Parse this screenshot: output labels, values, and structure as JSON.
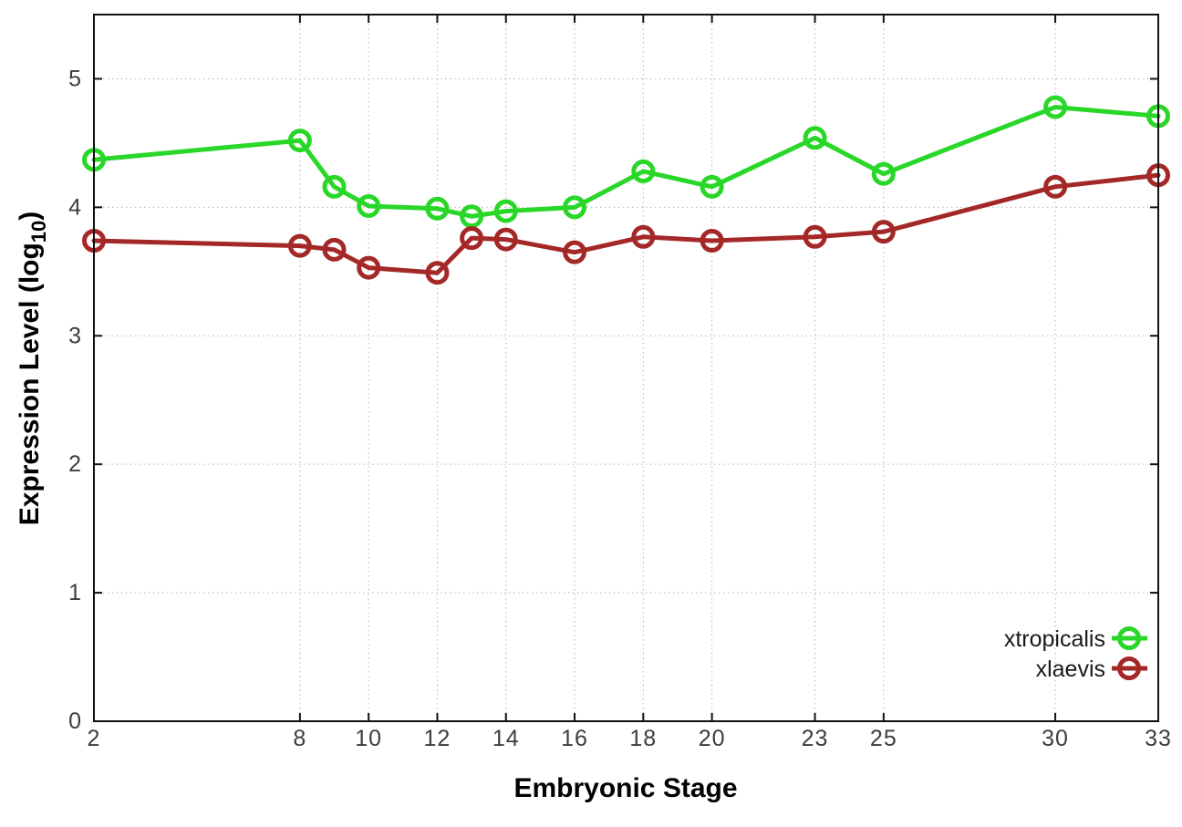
{
  "chart_data": {
    "type": "line",
    "title": "",
    "xlabel": "Embryonic Stage",
    "ylabel": "Expression Level (log10)",
    "ylabel_parts": {
      "main": "Expression Level (log",
      "sub": "10",
      "close": ")"
    },
    "x": [
      2,
      8,
      9,
      10,
      12,
      13,
      14,
      16,
      18,
      20,
      23,
      25,
      30,
      33
    ],
    "series": [
      {
        "name": "xtropicalis",
        "color": "#28d728",
        "values": [
          4.37,
          4.52,
          4.16,
          4.01,
          3.99,
          3.93,
          3.97,
          4.0,
          4.28,
          4.16,
          4.54,
          4.26,
          4.78,
          4.71
        ]
      },
      {
        "name": "xlaevis",
        "color": "#a52828",
        "values": [
          3.74,
          3.7,
          3.67,
          3.53,
          3.49,
          3.76,
          3.75,
          3.65,
          3.77,
          3.74,
          3.77,
          3.81,
          4.16,
          4.25
        ]
      }
    ],
    "x_ticks": [
      2,
      8,
      10,
      12,
      14,
      16,
      18,
      20,
      23,
      25,
      30,
      33
    ],
    "y_ticks": [
      0,
      1,
      2,
      3,
      4,
      5
    ],
    "xlim": [
      2,
      33
    ],
    "ylim": [
      0,
      5.5
    ],
    "grid": true,
    "legend_position": "inside-bottom-right",
    "marker": "open-circle",
    "colors": {
      "grid": "#b4b4b4",
      "border": "#111111",
      "tick_label": "#3d3d3d",
      "background": "#ffffff"
    }
  }
}
